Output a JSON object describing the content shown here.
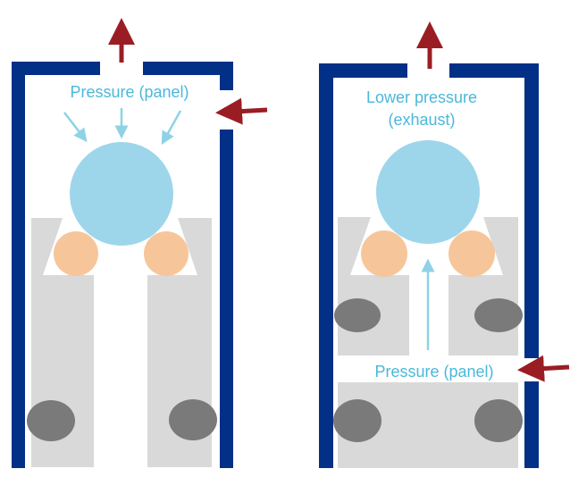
{
  "colors": {
    "wall": "#033087",
    "ball": "#9dd6ea",
    "seal": "#f6c69a",
    "gray_part": "#d9d9d9",
    "oring": "#7a7a7a",
    "red_arrow": "#9b1d24",
    "light_arrow": "#8fd2e6",
    "label_text": "#4ab8da"
  },
  "left_valve": {
    "label": "Pressure (panel)"
  },
  "right_valve": {
    "label_top_line1": "Lower pressure",
    "label_top_line2": "(exhaust)",
    "label_bottom": "Pressure (panel)"
  }
}
